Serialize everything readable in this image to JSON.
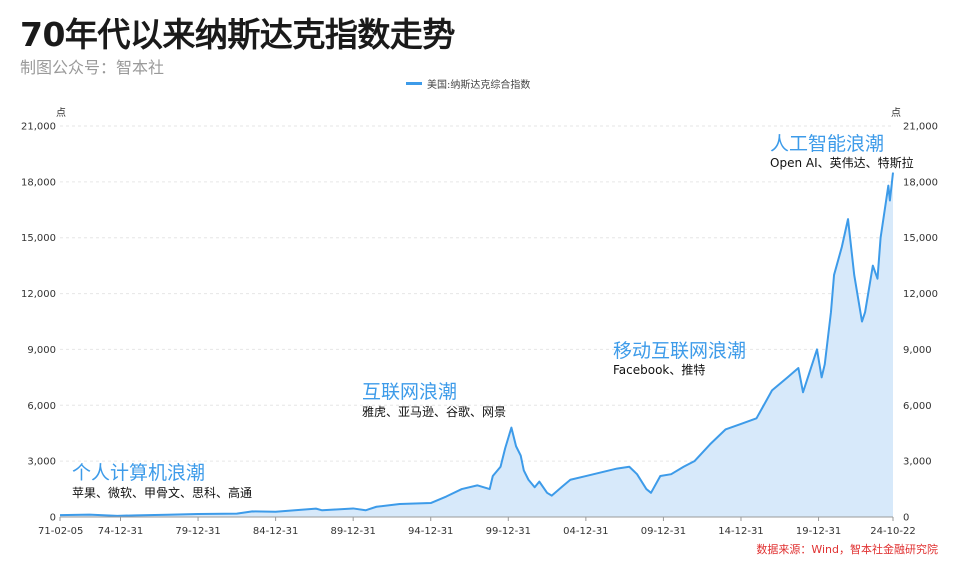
{
  "header": {
    "title": "70年代以来纳斯达克指数走势",
    "subtitle": "制图公众号：智本社"
  },
  "source": "数据来源：Wind，智本社金融研究院",
  "colors": {
    "line": "#3d9be9",
    "area": "#d7e9fa",
    "grid": "#e6e6e6"
  },
  "chart_data": {
    "type": "area",
    "title": "70年代以来纳斯达克指数走势",
    "legend": {
      "position": "top-center",
      "entries": [
        "美国:纳斯达克综合指数"
      ]
    },
    "y_unit": "点",
    "ylim": [
      0,
      21000
    ],
    "yticks": [
      0,
      3000,
      6000,
      9000,
      12000,
      15000,
      18000,
      21000
    ],
    "ytick_labels": [
      "0",
      "3,000",
      "6,000",
      "9,000",
      "12,000",
      "15,000",
      "18,000",
      "21,000"
    ],
    "grid": true,
    "x_range": [
      1971.1,
      2024.8
    ],
    "x_ticks": [
      {
        "pos": 1971.1,
        "label": "71-02-05"
      },
      {
        "pos": 1975.0,
        "label": "74-12-31"
      },
      {
        "pos": 1980.0,
        "label": "79-12-31"
      },
      {
        "pos": 1985.0,
        "label": "84-12-31"
      },
      {
        "pos": 1990.0,
        "label": "89-12-31"
      },
      {
        "pos": 1995.0,
        "label": "94-12-31"
      },
      {
        "pos": 2000.0,
        "label": "99-12-31"
      },
      {
        "pos": 2005.0,
        "label": "04-12-31"
      },
      {
        "pos": 2010.0,
        "label": "09-12-31"
      },
      {
        "pos": 2015.0,
        "label": "14-12-31"
      },
      {
        "pos": 2020.0,
        "label": "19-12-31"
      },
      {
        "pos": 2024.8,
        "label": "24-10-22"
      }
    ],
    "series": [
      {
        "name": "美国:纳斯达克综合指数",
        "x": [
          1971.1,
          1973.0,
          1974.8,
          1976.0,
          1978.0,
          1980.0,
          1982.5,
          1983.5,
          1985.0,
          1987.6,
          1988.0,
          1990.0,
          1990.8,
          1991.5,
          1993.0,
          1995.0,
          1996.0,
          1997.0,
          1998.0,
          1998.8,
          1999.0,
          1999.5,
          1999.8,
          2000.2,
          2000.5,
          2000.8,
          2001.0,
          2001.3,
          2001.7,
          2002.0,
          2002.5,
          2002.8,
          2003.5,
          2004.0,
          2005.0,
          2006.0,
          2007.0,
          2007.8,
          2008.3,
          2008.9,
          2009.2,
          2009.8,
          2010.5,
          2011.3,
          2012.0,
          2013.0,
          2014.0,
          2015.0,
          2016.0,
          2017.0,
          2018.0,
          2018.7,
          2019.0,
          2019.9,
          2020.2,
          2020.4,
          2020.8,
          2021.0,
          2021.5,
          2021.9,
          2022.3,
          2022.8,
          2023.0,
          2023.5,
          2023.8,
          2024.0,
          2024.5,
          2024.6,
          2024.8
        ],
        "values": [
          100,
          130,
          60,
          90,
          120,
          160,
          180,
          300,
          280,
          450,
          360,
          460,
          360,
          550,
          700,
          750,
          1100,
          1500,
          1700,
          1500,
          2200,
          2700,
          3700,
          4800,
          3800,
          3300,
          2500,
          2000,
          1600,
          1900,
          1300,
          1150,
          1650,
          2000,
          2200,
          2400,
          2600,
          2700,
          2300,
          1500,
          1300,
          2200,
          2300,
          2700,
          3000,
          3900,
          4700,
          5000,
          5300,
          6800,
          7500,
          8000,
          6700,
          9000,
          7500,
          8200,
          11000,
          13000,
          14500,
          16000,
          13000,
          10500,
          11000,
          13500,
          12800,
          15000,
          17800,
          17000,
          18500
        ]
      }
    ],
    "annotations": [
      {
        "title": "个人计算机浪潮",
        "sub": "苹果、微软、甲骨文、思科、高通"
      },
      {
        "title": "互联网浪潮",
        "sub": "雅虎、亚马逊、谷歌、网景"
      },
      {
        "title": "移动互联网浪潮",
        "sub": "Facebook、推特"
      },
      {
        "title": "人工智能浪潮",
        "sub": "Open AI、英伟达、特斯拉"
      }
    ]
  }
}
